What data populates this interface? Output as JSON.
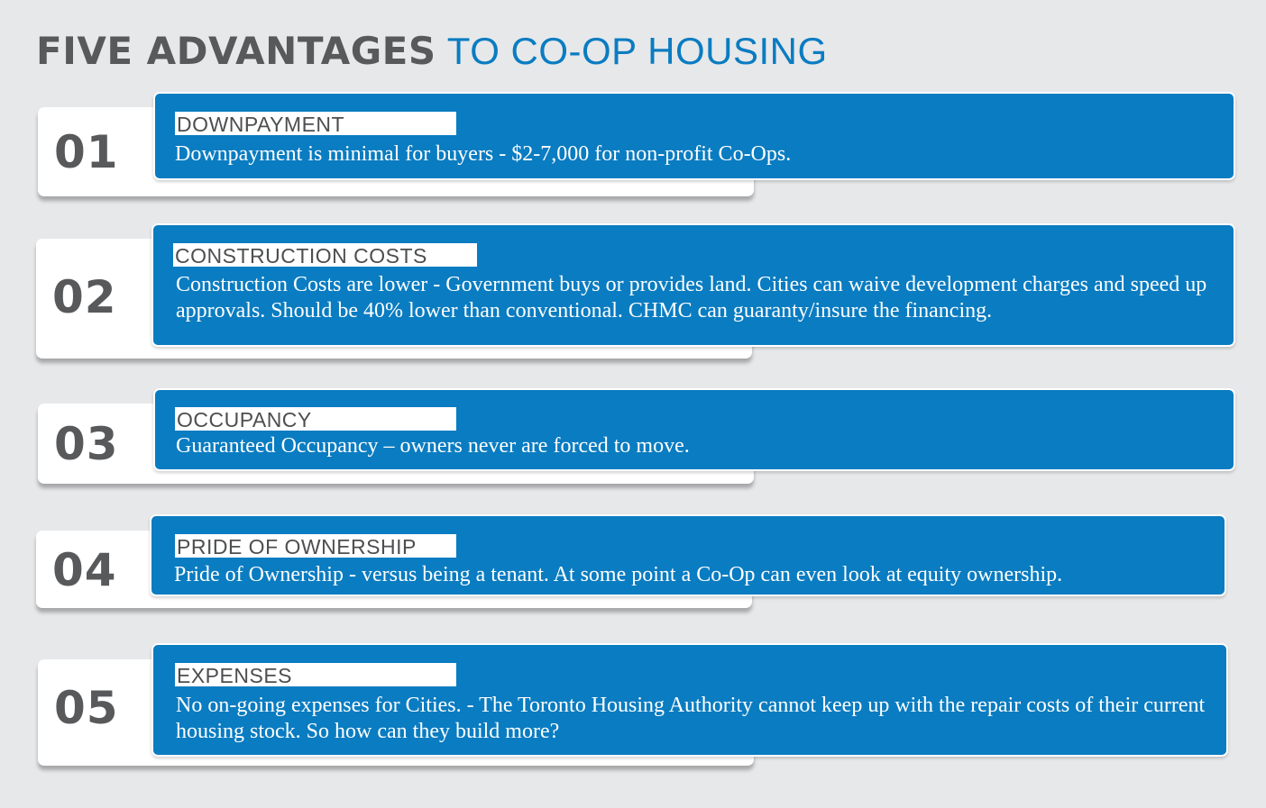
{
  "header": {
    "title_bold": "FIVE ADVANTAGES",
    "title_light": "TO CO-OP HOUSING"
  },
  "items": [
    {
      "number": "01",
      "label": "DOWNPAYMENT",
      "text": "Downpayment is minimal for buyers - $2-7,000 for non-profit Co-Ops."
    },
    {
      "number": "02",
      "label": "CONSTRUCTION COSTS",
      "text": "Construction Costs are lower - Government buys or provides land. Cities can waive development charges and speed up approvals. Should be 40% lower than conventional. CHMC can guaranty/insure the financing."
    },
    {
      "number": "03",
      "label": "OCCUPANCY",
      "text": "Guaranteed Occupancy – owners never are forced to move."
    },
    {
      "number": "04",
      "label": "PRIDE OF OWNERSHIP",
      "text": "Pride of Ownership - versus being a tenant. At some point a Co-Op can even look at equity ownership."
    },
    {
      "number": "05",
      "label": "EXPENSES",
      "text": "No on-going expenses for Cities. - The Toronto Housing Authority cannot keep up with the repair costs of their current housing stock. So how can they build more?"
    }
  ],
  "colors": {
    "background": "#e7e8ea",
    "accent_blue": "#0a7cc1",
    "dark_gray": "#58595b",
    "white": "#ffffff"
  }
}
